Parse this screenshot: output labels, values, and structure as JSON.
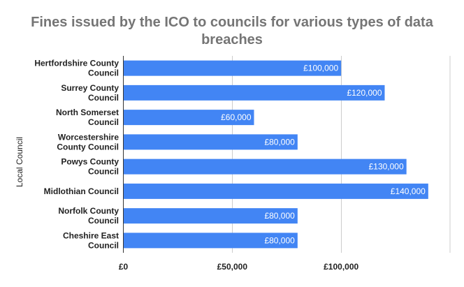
{
  "chart_data": {
    "type": "bar",
    "orientation": "horizontal",
    "title_lines": [
      "Fines issued by the ICO to councils for various types of data",
      "breaches"
    ],
    "ylabel": "Local Council",
    "xlabel": "",
    "categories": [
      [
        "Hertfordshire County",
        "Council"
      ],
      [
        "Surrey County",
        "Council"
      ],
      [
        "North Somerset",
        "Council"
      ],
      [
        "Worcestershire",
        "County Council"
      ],
      [
        "Powys County",
        "Council"
      ],
      [
        "Midlothian Council"
      ],
      [
        "Norfolk County",
        "Council"
      ],
      [
        "Cheshire East",
        "Council"
      ]
    ],
    "values": [
      100000,
      120000,
      60000,
      80000,
      130000,
      140000,
      80000,
      80000
    ],
    "value_labels": [
      "£100,000",
      "£120,000",
      "£60,000",
      "£80,000",
      "£130,000",
      "£140,000",
      "£80,000",
      "£80,000"
    ],
    "xticks": [
      0,
      50000,
      100000
    ],
    "xtick_labels": [
      "£0",
      "£50,000",
      "£100,000"
    ],
    "xlim": [
      0,
      150000
    ],
    "bar_color": "#4285f4",
    "grid": true,
    "legend": "none"
  }
}
